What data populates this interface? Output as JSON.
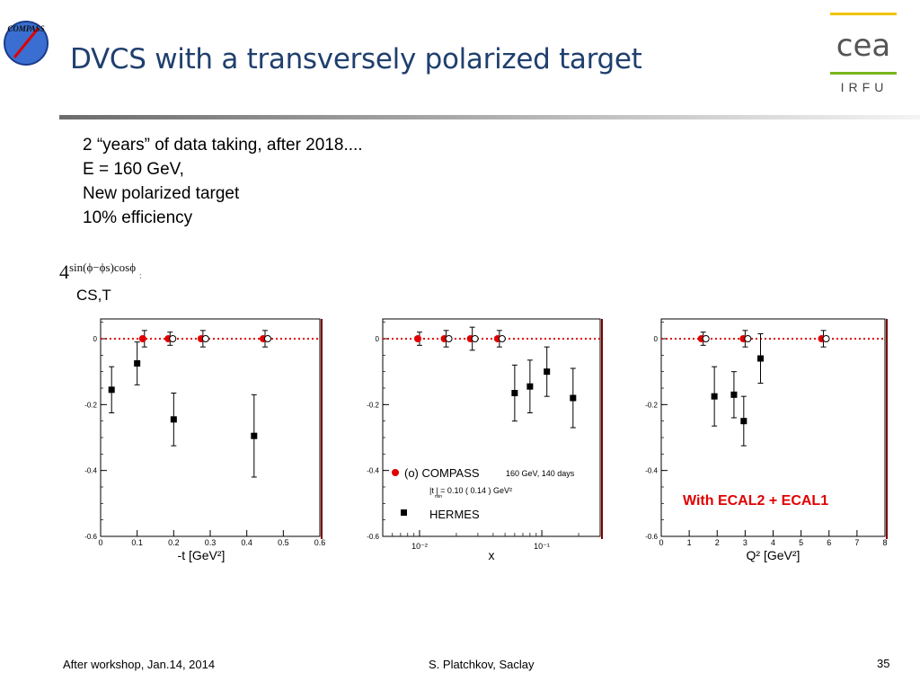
{
  "slide": {
    "title": "DVCS with a transversely polarized target",
    "bullets": [
      "2 “years” of data taking, after 2018....",
      "E = 160 GeV,",
      "New polarized target",
      "10% efficiency"
    ],
    "formula_prefix": "4",
    "formula_sup": "sin(ϕ−ϕs)cosϕ",
    "formula_suffix": ":",
    "formula_sub": "CS,T",
    "ecal_note": "With ECAL2 + ECAL1",
    "footer_left": "After workshop, Jan.14, 2014",
    "footer_center": "S. Platchkov, Saclay",
    "page_number": "35",
    "cea_logo_text": "cea",
    "irfu_text": "IRFU",
    "compass_logo_text": "COMPASS",
    "colors": {
      "title": "#1f3f6e",
      "compass_marker": "#e00000",
      "zero_line": "#e00000",
      "hermes_marker": "#000000",
      "frame_right": "#7a0000",
      "cea_yellow": "#f2c200",
      "cea_green": "#79b51c",
      "ecal_note": "#e00000"
    }
  },
  "chart_data": [
    {
      "type": "scatter",
      "xlabel": "-t [GeV²]",
      "xlim": [
        0,
        0.6
      ],
      "ylim": [
        -0.6,
        0.06
      ],
      "xticks": [
        "0",
        "0.1",
        "0.2",
        "0.3",
        "0.4",
        "0.5",
        "0.6"
      ],
      "yticks": [
        "0",
        "-0.2",
        "-0.4",
        "-0.6"
      ],
      "compass": {
        "x": [
          0.12,
          0.19,
          0.28,
          0.45
        ],
        "y": [
          0,
          0,
          0,
          0
        ],
        "err": [
          0.025,
          0.02,
          0.025,
          0.025
        ],
        "hollow_x": [
          0.19,
          0.28,
          0.45
        ]
      },
      "hermes": {
        "x": [
          0.03,
          0.1,
          0.2,
          0.42
        ],
        "y": [
          -0.155,
          -0.075,
          -0.245,
          -0.295
        ],
        "err": [
          0.07,
          0.065,
          0.08,
          0.125
        ]
      }
    },
    {
      "type": "scatter",
      "xlabel": "x",
      "log_x": true,
      "xlim": [
        0.005,
        0.3
      ],
      "ylim": [
        -0.6,
        0.06
      ],
      "xticks": [
        "10⁻²",
        "10⁻¹"
      ],
      "yticks": [
        "0",
        "-0.2",
        "-0.4",
        "-0.6"
      ],
      "compass": {
        "x": [
          0.01,
          0.0165,
          0.027,
          0.045
        ],
        "y": [
          0,
          0,
          0,
          0
        ],
        "err": [
          0.02,
          0.025,
          0.035,
          0.025
        ],
        "hollow_x": [
          0.0165,
          0.027,
          0.045
        ]
      },
      "hermes": {
        "x": [
          0.06,
          0.08,
          0.11,
          0.18
        ],
        "y": [
          -0.165,
          -0.145,
          -0.1,
          -0.18
        ],
        "err": [
          0.085,
          0.08,
          0.075,
          0.09
        ]
      },
      "legend": {
        "compass_label": "(o)  COMPASS",
        "compass_detail": "160 GeV, 140 days",
        "tmin_label": "|t   | = 0.10 ( 0.14 ) GeV²",
        "tmin_sub": "min",
        "hermes_label": "HERMES"
      }
    },
    {
      "type": "scatter",
      "xlabel": "Q² [GeV²]",
      "xlim": [
        0,
        8
      ],
      "ylim": [
        -0.6,
        0.06
      ],
      "xticks": [
        "0",
        "1",
        "2",
        "3",
        "4",
        "5",
        "6",
        "7",
        "8"
      ],
      "yticks": [
        "0",
        "-0.2",
        "-0.4",
        "-0.6"
      ],
      "compass": {
        "x": [
          1.5,
          3.0,
          5.8
        ],
        "y": [
          0,
          0,
          0
        ],
        "err": [
          0.02,
          0.025,
          0.025
        ],
        "hollow_x": [
          1.5,
          3.0,
          5.8
        ]
      },
      "hermes": {
        "x": [
          1.9,
          2.6,
          2.95,
          3.55
        ],
        "y": [
          -0.175,
          -0.17,
          -0.25,
          -0.06
        ],
        "err": [
          0.09,
          0.07,
          0.075,
          0.075
        ]
      }
    }
  ]
}
